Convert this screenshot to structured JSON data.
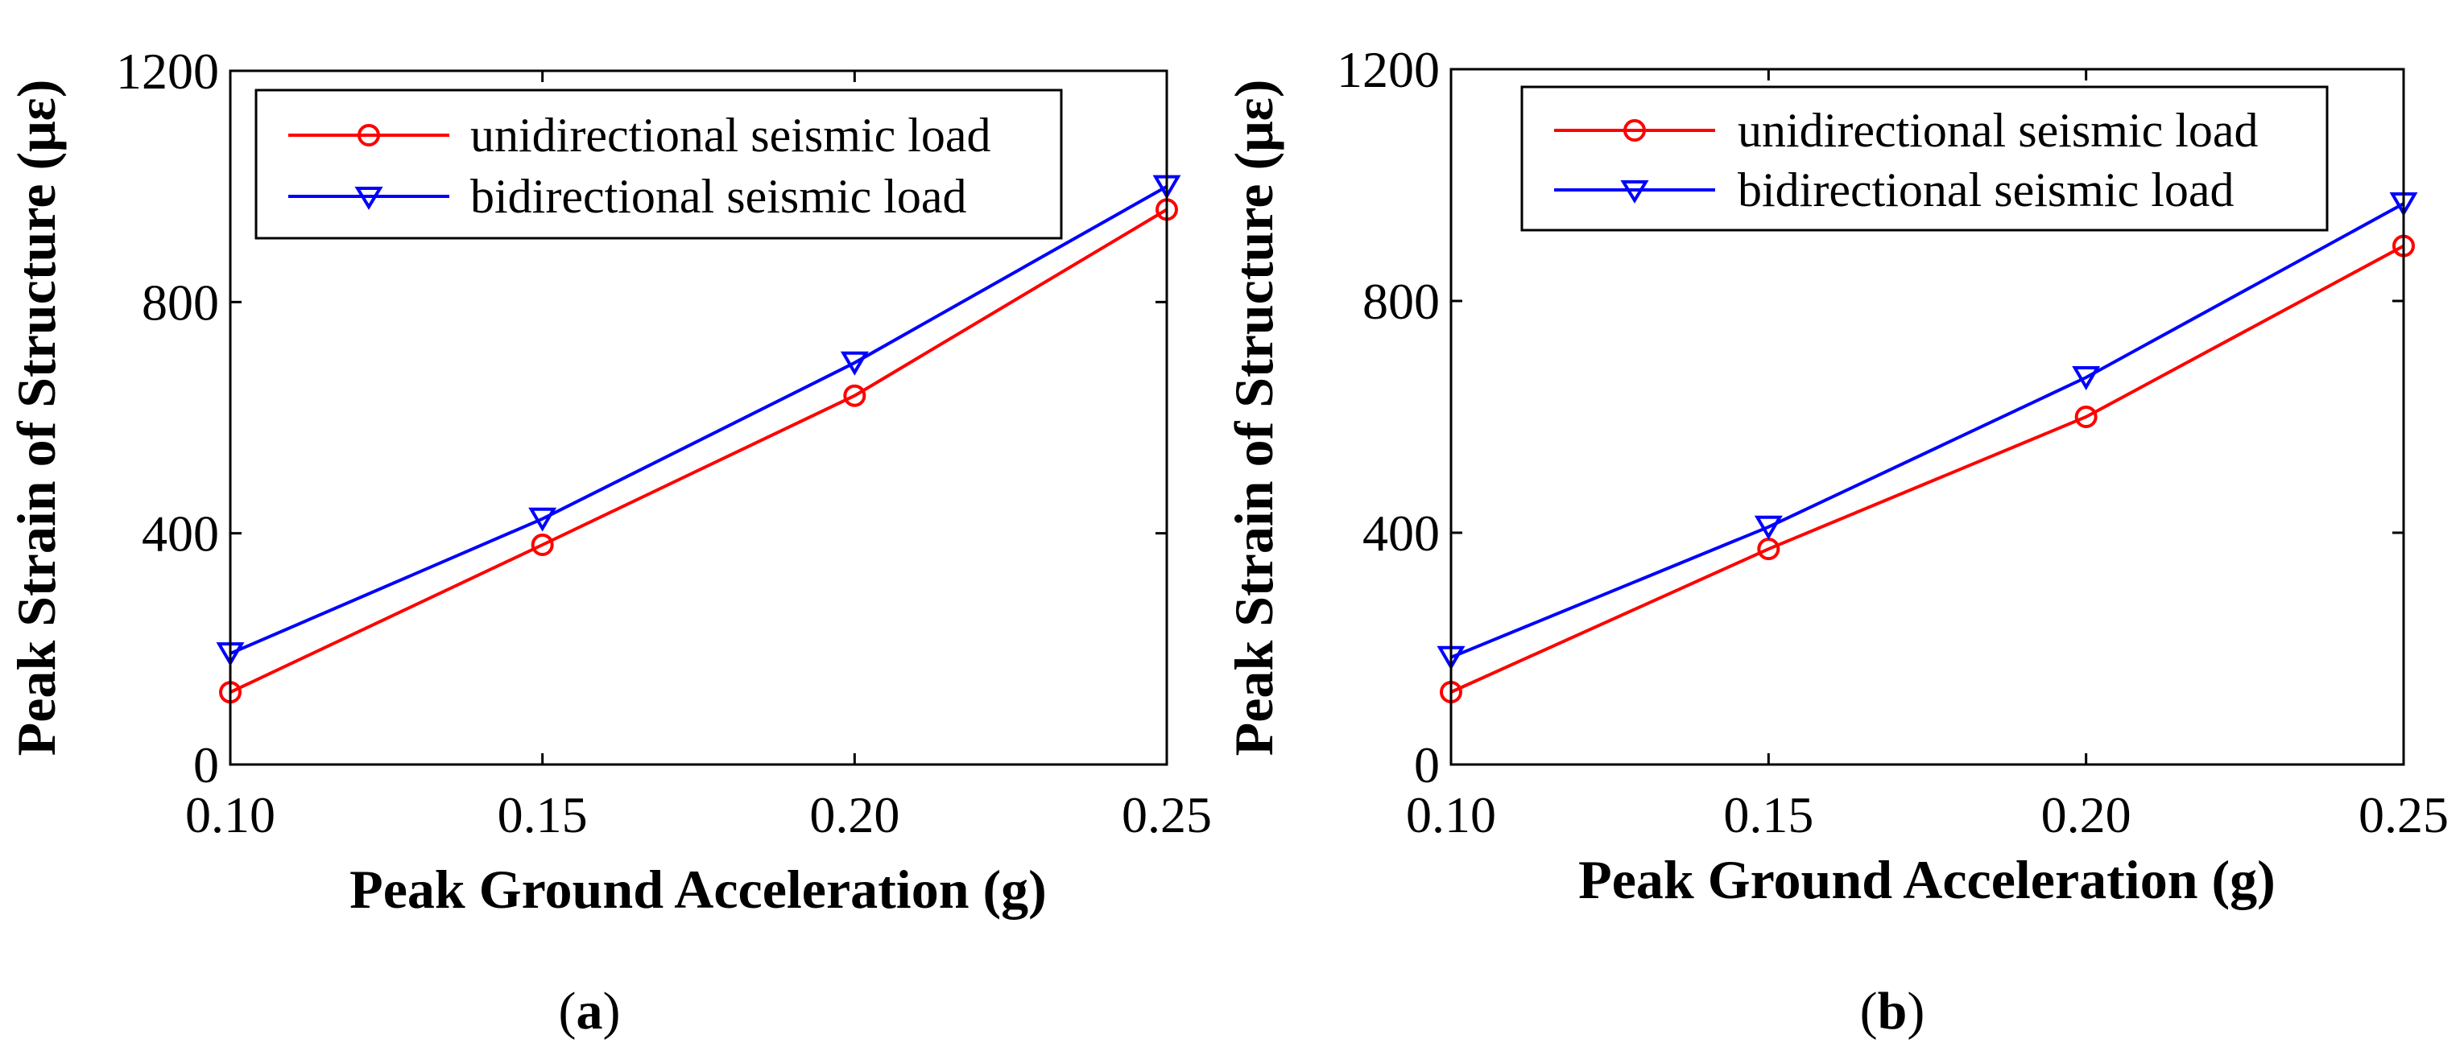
{
  "chart_data": [
    {
      "type": "line",
      "panel_label": {
        "open": "(",
        "letter": "a",
        "close": ")"
      },
      "xlabel": "Peak Ground Acceleration (g)",
      "ylabel": "Peak Strain of Structure (με)",
      "x": [
        0.1,
        0.15,
        0.2,
        0.25
      ],
      "x_tick_labels": [
        "0.10",
        "0.15",
        "0.20",
        "0.25"
      ],
      "xlim": [
        0.1,
        0.25
      ],
      "ylim": [
        0,
        1200
      ],
      "y_ticks": [
        0,
        400,
        800,
        1200
      ],
      "y_tick_labels": [
        "0",
        "400",
        "800",
        "1200"
      ],
      "grid": false,
      "legend_position": "top-left",
      "series": [
        {
          "name": "unidirectional seismic load",
          "color": "#ff0000",
          "marker": "circle",
          "values": [
            125,
            380,
            638,
            960
          ]
        },
        {
          "name": "bidirectional seismic load",
          "color": "#0000ff",
          "marker": "triangle-down",
          "values": [
            192,
            425,
            695,
            1000
          ]
        }
      ]
    },
    {
      "type": "line",
      "panel_label": {
        "open": "(",
        "letter": "b",
        "close": ")"
      },
      "xlabel": "Peak Ground Acceleration (g)",
      "ylabel": "Peak Strain of Structure (με)",
      "x": [
        0.1,
        0.15,
        0.2,
        0.25
      ],
      "x_tick_labels": [
        "0.10",
        "0.15",
        "0.20",
        "0.25"
      ],
      "xlim": [
        0.1,
        0.25
      ],
      "ylim": [
        0,
        1200
      ],
      "y_ticks": [
        0,
        400,
        800,
        1200
      ],
      "y_tick_labels": [
        "0",
        "400",
        "800",
        "1200"
      ],
      "grid": false,
      "legend_position": "top",
      "series": [
        {
          "name": "unidirectional seismic load",
          "color": "#ff0000",
          "marker": "circle",
          "values": [
            125,
            372,
            600,
            895
          ]
        },
        {
          "name": "bidirectional seismic load",
          "color": "#0000ff",
          "marker": "triangle-down",
          "values": [
            185,
            410,
            668,
            968
          ]
        }
      ]
    }
  ]
}
